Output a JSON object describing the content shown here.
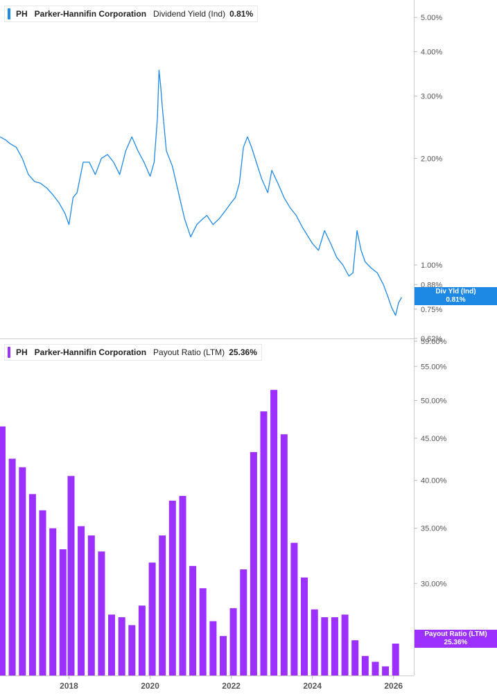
{
  "colors": {
    "line": "#1e88e5",
    "bars": "#9b30ff",
    "grid": "#dddddd"
  },
  "panels": {
    "top": {
      "ticker": "PH",
      "company": "Parker-Hannifin Corporation",
      "metric": "Dividend Yield (Ind)",
      "value": "0.81%",
      "flag_label": "Div Yld (Ind)",
      "flag_value": "0.81%"
    },
    "bottom": {
      "ticker": "PH",
      "company": "Parker-Hannifin Corporation",
      "metric": "Payout Ratio (LTM)",
      "value": "25.36%",
      "flag_label": "Payout Ratio (LTM)",
      "flag_value": "25.36%"
    }
  },
  "chart_data": [
    {
      "type": "line",
      "series_name": "Dividend Yield (Ind)",
      "scale": "log",
      "y_ticks": [
        5.0,
        4.0,
        3.0,
        2.0,
        1.0,
        0.88,
        0.75,
        0.62
      ],
      "y_tick_labels": [
        "5.00%",
        "4.00%",
        "3.00%",
        "2.00%",
        "1.00%",
        "0.88%",
        "0.75%",
        "0.62%"
      ],
      "ylim": [
        0.62,
        5.6
      ],
      "xlim": [
        2016.3,
        2026.5
      ],
      "x": [
        2016.3,
        2016.45,
        2016.55,
        2016.7,
        2016.85,
        2017.0,
        2017.15,
        2017.3,
        2017.45,
        2017.6,
        2017.75,
        2017.9,
        2018.0,
        2018.1,
        2018.2,
        2018.35,
        2018.5,
        2018.65,
        2018.8,
        2018.95,
        2019.1,
        2019.25,
        2019.4,
        2019.55,
        2019.7,
        2019.85,
        2020.0,
        2020.1,
        2020.18,
        2020.22,
        2020.26,
        2020.3,
        2020.4,
        2020.55,
        2020.7,
        2020.85,
        2021.0,
        2021.15,
        2021.3,
        2021.4,
        2021.55,
        2021.7,
        2021.85,
        2022.0,
        2022.1,
        2022.2,
        2022.3,
        2022.4,
        2022.5,
        2022.6,
        2022.75,
        2022.9,
        2023.0,
        2023.15,
        2023.3,
        2023.45,
        2023.6,
        2023.75,
        2023.9,
        2024.0,
        2024.15,
        2024.3,
        2024.45,
        2024.6,
        2024.75,
        2024.9,
        2025.0,
        2025.1,
        2025.2,
        2025.3,
        2025.45,
        2025.6,
        2025.75,
        2025.85,
        2025.95,
        2026.05,
        2026.12,
        2026.2
      ],
      "values": [
        2.3,
        2.25,
        2.2,
        2.15,
        2.0,
        1.8,
        1.72,
        1.7,
        1.65,
        1.58,
        1.5,
        1.4,
        1.3,
        1.55,
        1.6,
        1.95,
        1.95,
        1.8,
        2.0,
        2.05,
        1.95,
        1.8,
        2.1,
        2.3,
        2.1,
        1.95,
        1.78,
        1.95,
        2.6,
        3.55,
        3.2,
        2.8,
        2.1,
        1.9,
        1.6,
        1.35,
        1.2,
        1.3,
        1.35,
        1.38,
        1.3,
        1.35,
        1.42,
        1.5,
        1.55,
        1.7,
        2.15,
        2.3,
        2.15,
        1.98,
        1.75,
        1.6,
        1.85,
        1.7,
        1.55,
        1.45,
        1.38,
        1.28,
        1.2,
        1.15,
        1.1,
        1.25,
        1.15,
        1.05,
        1.0,
        0.93,
        0.95,
        1.25,
        1.1,
        1.02,
        0.98,
        0.95,
        0.88,
        0.82,
        0.76,
        0.72,
        0.78,
        0.81
      ]
    },
    {
      "type": "bar",
      "series_name": "Payout Ratio (LTM)",
      "scale": "log",
      "y_ticks": [
        59.0,
        55.0,
        50.0,
        45.0,
        40.0,
        35.0,
        30.0
      ],
      "y_tick_labels": [
        "59.00%",
        "55.00%",
        "50.00%",
        "45.00%",
        "40.00%",
        "35.00%",
        "30.00%"
      ],
      "ylim": [
        23.2,
        59.0
      ],
      "x_tick_labels": [
        "2018",
        "2020",
        "2022",
        "2024",
        "2026"
      ],
      "x_tick_values": [
        2018,
        2020,
        2022,
        2024,
        2026
      ],
      "xlim": [
        2016.3,
        2026.5
      ],
      "x": [
        2016.3,
        2016.55,
        2016.8,
        2017.05,
        2017.3,
        2017.55,
        2017.8,
        2018.0,
        2018.25,
        2018.5,
        2018.75,
        2019.0,
        2019.25,
        2019.5,
        2019.75,
        2020.0,
        2020.25,
        2020.5,
        2020.75,
        2021.0,
        2021.25,
        2021.5,
        2021.75,
        2022.0,
        2022.25,
        2022.5,
        2022.75,
        2023.0,
        2023.25,
        2023.5,
        2023.75,
        2024.0,
        2024.25,
        2024.5,
        2024.75,
        2025.0,
        2025.25,
        2025.5,
        2025.75,
        2026.0
      ],
      "values": [
        46.5,
        42.5,
        41.5,
        38.5,
        36.8,
        35.0,
        33.0,
        40.5,
        35.2,
        34.3,
        32.8,
        27.5,
        27.3,
        26.7,
        28.2,
        31.8,
        34.3,
        37.8,
        38.3,
        31.5,
        29.6,
        27.0,
        25.9,
        28.0,
        31.2,
        43.3,
        48.5,
        51.5,
        45.5,
        33.6,
        30.5,
        27.9,
        27.3,
        27.3,
        27.5,
        25.6,
        24.5,
        24.1,
        23.8,
        25.36
      ]
    }
  ]
}
